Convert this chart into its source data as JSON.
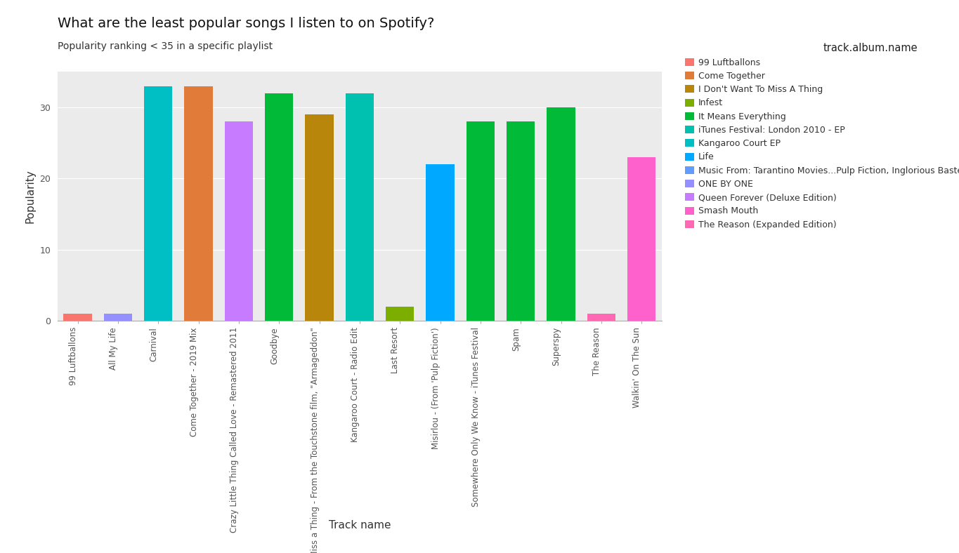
{
  "title": "What are the least popular songs I listen to on Spotify?",
  "subtitle": "Popularity ranking < 35 in a specific playlist",
  "xlabel": "Track name",
  "ylabel": "Popularity",
  "legend_title": "track.album.name",
  "songs": [
    "99 Luftballons",
    "All My Life",
    "Carnival",
    "Come Together - 2019 Mix",
    "Crazy Little Thing Called Love - Remastered 2011",
    "Goodbye",
    "I Don't Want to Miss a Thing - From the Touchstone film, \"Armageddon\"",
    "Kangaroo Court - Radio Edit",
    "Last Resort",
    "Misirlou - (From 'Pulp Fiction')",
    "Somewhere Only We Know - iTunes Festival",
    "Spam",
    "Superspy",
    "The Reason",
    "Walkin' On The Sun"
  ],
  "values": [
    1,
    1,
    33,
    33,
    28,
    32,
    29,
    32,
    2,
    22,
    28,
    28,
    30,
    1,
    23
  ],
  "bar_colors": [
    "#F8766D",
    "#9590FF",
    "#00BFC4",
    "#E07B39",
    "#C77CFF",
    "#00BA38",
    "#B8860B",
    "#00C0AF",
    "#7CAE00",
    "#00A9FF",
    "#00BA38",
    "#00BA38",
    "#00BA38",
    "#FF69B4",
    "#FF61CC"
  ],
  "album_names": [
    "99 Luftballons",
    "Come Together",
    "I Don't Want To Miss A Thing",
    "Infest",
    "It Means Everything",
    "iTunes Festival: London 2010 - EP",
    "Kangaroo Court EP",
    "Life",
    "Music From: Tarantino Movies...Pulp Fiction, Inglorious Basterds, Kill Bill and more",
    "ONE BY ONE",
    "Queen Forever (Deluxe Edition)",
    "Smash Mouth",
    "The Reason (Expanded Edition)"
  ],
  "legend_colors": [
    "#F8766D",
    "#E07B39",
    "#B8860B",
    "#7CAE00",
    "#00BA38",
    "#00C0AF",
    "#00BFC4",
    "#00A9FF",
    "#619CFF",
    "#9590FF",
    "#C77CFF",
    "#FF61CC",
    "#FF69B4"
  ],
  "ylim": [
    0,
    35
  ],
  "yticks": [
    0,
    10,
    20,
    30
  ],
  "background_color": "#EBEBEB",
  "grid_color": "#FFFFFF"
}
